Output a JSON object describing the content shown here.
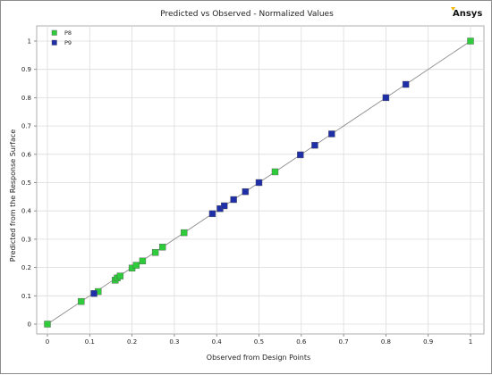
{
  "logo_text": "Ansys",
  "colors": {
    "p8": "#2ecc3a",
    "p9": "#1f2fa8",
    "logo_accent": "#f2b705",
    "grid": "#dcdcdc",
    "identity_line": "#8a8a8a"
  },
  "chart_data": {
    "type": "scatter",
    "title": "Predicted vs Observed - Normalized Values",
    "xlabel": "Observed from Design Points",
    "ylabel": "Predicted from the Response Surface",
    "xlim": [
      0,
      1
    ],
    "ylim": [
      0,
      1
    ],
    "xticks": [
      "0",
      "0.1",
      "0.2",
      "0.3",
      "0.4",
      "0.5",
      "0.6",
      "0.7",
      "0.8",
      "0.9",
      "1"
    ],
    "yticks": [
      "0",
      "0.1",
      "0.2",
      "0.3",
      "0.4",
      "0.5",
      "0.6",
      "0.7",
      "0.8",
      "0.9",
      "1"
    ],
    "grid": true,
    "legend": "top-left",
    "identity_line": true,
    "series": [
      {
        "name": "P8",
        "color": "#2ecc3a",
        "points": [
          [
            0.0,
            0.0
          ],
          [
            0.08,
            0.08
          ],
          [
            0.12,
            0.115
          ],
          [
            0.16,
            0.155
          ],
          [
            0.165,
            0.163
          ],
          [
            0.172,
            0.17
          ],
          [
            0.2,
            0.198
          ],
          [
            0.21,
            0.208
          ],
          [
            0.225,
            0.223
          ],
          [
            0.255,
            0.253
          ],
          [
            0.272,
            0.272
          ],
          [
            0.323,
            0.323
          ],
          [
            0.538,
            0.538
          ],
          [
            1.0,
            1.0
          ]
        ]
      },
      {
        "name": "P9",
        "color": "#1f2fa8",
        "points": [
          [
            0.11,
            0.108
          ],
          [
            0.39,
            0.39
          ],
          [
            0.408,
            0.408
          ],
          [
            0.418,
            0.418
          ],
          [
            0.44,
            0.44
          ],
          [
            0.468,
            0.468
          ],
          [
            0.5,
            0.5
          ],
          [
            0.598,
            0.598
          ],
          [
            0.632,
            0.632
          ],
          [
            0.672,
            0.672
          ],
          [
            0.8,
            0.8
          ],
          [
            0.847,
            0.847
          ]
        ]
      }
    ]
  }
}
